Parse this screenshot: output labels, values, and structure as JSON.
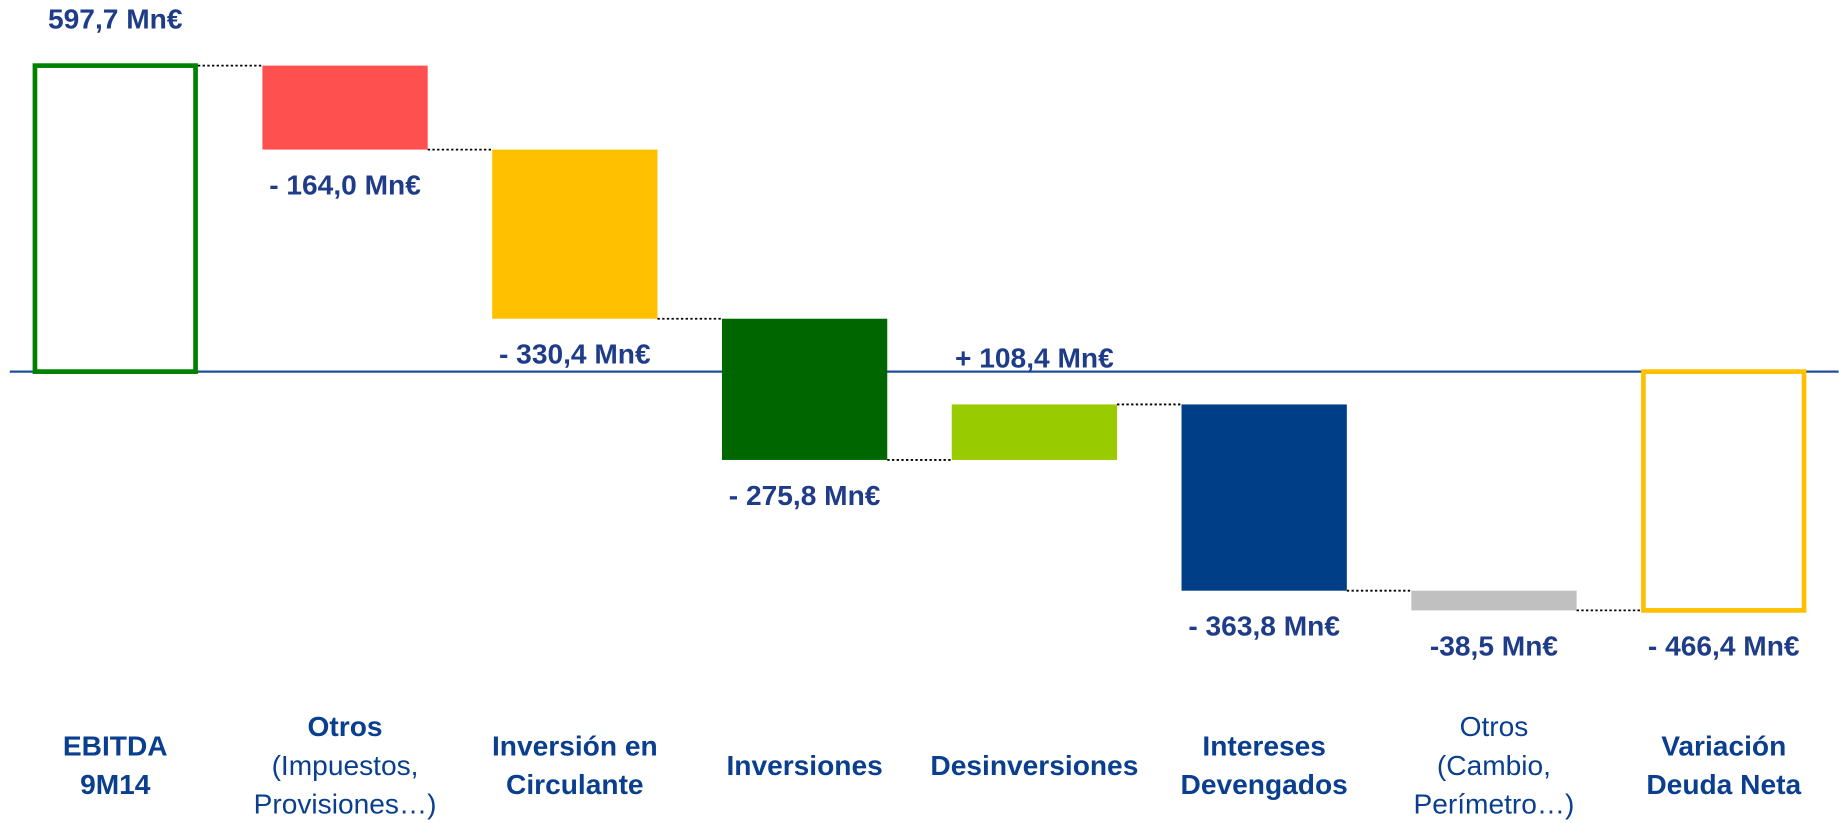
{
  "chart_data": {
    "type": "waterfall",
    "categories": [
      [
        "EBITDA",
        "9M14"
      ],
      [
        "Otros",
        "(Impuestos,",
        "Provisiones…)"
      ],
      [
        "Inversión en",
        "Circulante"
      ],
      [
        "Inversiones"
      ],
      [
        "Desinversiones"
      ],
      [
        "Intereses",
        "Devengados"
      ],
      [
        "Otros",
        "(Cambio,",
        "Perímetro…)"
      ],
      [
        "Variación",
        "Deuda Neta"
      ]
    ],
    "category_bold_lines": [
      2,
      1,
      2,
      1,
      1,
      2,
      0,
      2
    ],
    "values": [
      597.7,
      -164.0,
      -330.4,
      -275.8,
      108.4,
      -363.8,
      -38.5,
      -466.4
    ],
    "value_labels": [
      "597,7 Mn€",
      "- 164,0 Mn€",
      "- 330,4 Mn€",
      "- 275,8 Mn€",
      "+ 108,4 Mn€",
      "- 363,8 Mn€",
      "-38,5 Mn€",
      "- 466,4 Mn€"
    ],
    "total_indices": [
      0,
      7
    ],
    "colors": [
      "#008000",
      "#ff5050",
      "#ffc000",
      "#006600",
      "#99cc00",
      "#003f87",
      "#c0c0c0",
      "#ffc000"
    ],
    "value_label_color": "#1f3c88",
    "category_label_color": "#0a3f8f",
    "baseline_color": "#1f4e9b",
    "ylim": [
      -600,
      700
    ]
  }
}
